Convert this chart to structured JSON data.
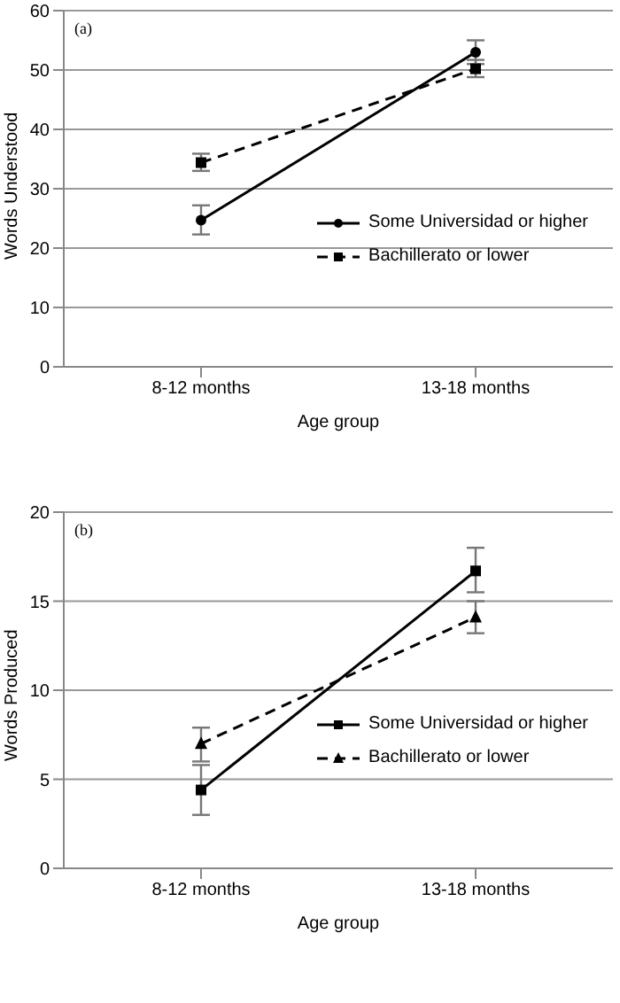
{
  "chart_data": [
    {
      "type": "line",
      "title": "(a)",
      "xlabel": "Age group",
      "ylabel": "Words Understood",
      "categories": [
        "8-12 months",
        "13-18 months"
      ],
      "series": [
        {
          "name": "Some Universidad or higher",
          "color": "#000000",
          "values": [
            24.7,
            53
          ],
          "errors": [
            [
              22.3,
              27.2
            ],
            [
              51,
              55
            ]
          ],
          "marker": "circle",
          "line_style": "solid"
        },
        {
          "name": "Bachillerato or lower",
          "color": "#000000",
          "values": [
            34.4,
            50.2
          ],
          "errors": [
            [
              33,
              35.9
            ],
            [
              48.8,
              51.7
            ]
          ],
          "marker": "square",
          "line_style": "dashed"
        }
      ],
      "ylim": [
        0,
        60
      ],
      "yticks": [
        0,
        10,
        20,
        30,
        40,
        50,
        60
      ],
      "grid": "y",
      "legend": "right"
    },
    {
      "type": "line",
      "title": "(b)",
      "xlabel": "Age group",
      "ylabel": "Words Produced",
      "categories": [
        "8-12 months",
        "13-18 months"
      ],
      "series": [
        {
          "name": "Some Universidad or higher",
          "color": "#000000",
          "values": [
            4.4,
            16.7
          ],
          "errors": [
            [
              3,
              5.8
            ],
            [
              15.5,
              18
            ]
          ],
          "marker": "square",
          "line_style": "solid"
        },
        {
          "name": "Bachillerato or lower",
          "color": "#000000",
          "values": [
            7,
            14.1
          ],
          "errors": [
            [
              6,
              7.9
            ],
            [
              13.2,
              15
            ]
          ],
          "marker": "triangle",
          "line_style": "dashed"
        }
      ],
      "ylim": [
        0,
        20
      ],
      "yticks": [
        0,
        5,
        10,
        15,
        20
      ],
      "grid": "y",
      "legend": "right"
    }
  ]
}
